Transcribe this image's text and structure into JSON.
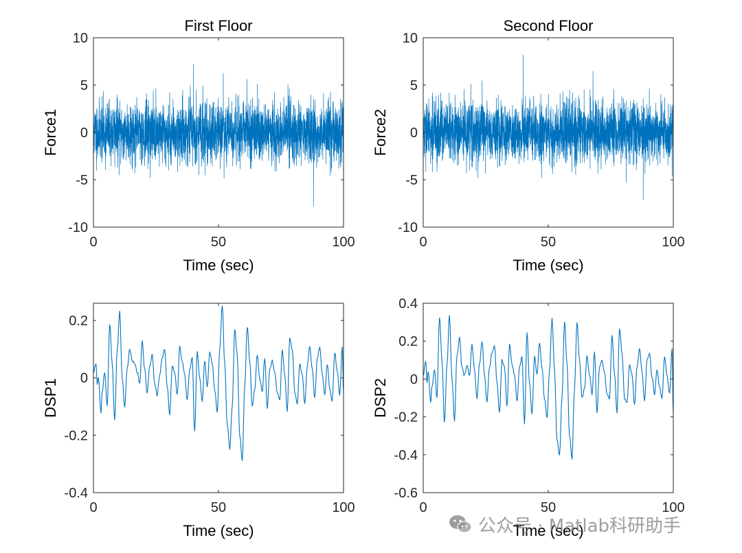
{
  "line_color": "#0072bd",
  "watermark": {
    "text": "公众号 · Matlab科研助手",
    "icon": "wechat-icon"
  },
  "chart_data": [
    {
      "type": "line",
      "title": "First Floor",
      "xlabel": "Time (sec)",
      "ylabel": "Force1",
      "xlim": [
        0,
        100
      ],
      "ylim": [
        -10,
        10
      ],
      "xticks": [
        "0",
        "50",
        "100"
      ],
      "yticks": [
        "-10",
        "-5",
        "0",
        "5",
        "10"
      ],
      "series": [
        {
          "name": "Force1",
          "kind": "noise",
          "sigma": 1.6,
          "max": 7.2,
          "min": -7.8,
          "seed": 11
        }
      ]
    },
    {
      "type": "line",
      "title": "Second Floor",
      "xlabel": "Time (sec)",
      "ylabel": "Force2",
      "xlim": [
        0,
        100
      ],
      "ylim": [
        -10,
        10
      ],
      "xticks": [
        "0",
        "50",
        "100"
      ],
      "yticks": [
        "-10",
        "-5",
        "0",
        "5",
        "10"
      ],
      "series": [
        {
          "name": "Force2",
          "kind": "noise",
          "sigma": 1.6,
          "max": 8.2,
          "min": -7.1,
          "seed": 29
        }
      ]
    },
    {
      "type": "line",
      "title": "",
      "xlabel": "Time (sec)",
      "ylabel": "DSP1",
      "xlim": [
        0,
        100
      ],
      "ylim": [
        -0.4,
        0.26
      ],
      "xticks": [
        "0",
        "50",
        "100"
      ],
      "yticks": [
        "-0.4",
        "-0.2",
        "0",
        "0.2"
      ],
      "series": [
        {
          "name": "DSP1",
          "kind": "signal",
          "x": [
            0,
            1,
            1.5,
            2,
            3,
            3.5,
            4.5,
            5.5,
            6.5,
            7.5,
            8.5,
            9.5,
            10.5,
            11.5,
            12.5,
            13.5,
            14.5,
            15.5,
            16.5,
            17.5,
            18.5,
            19.5,
            20.5,
            21.5,
            22.5,
            23.5,
            24.5,
            25.5,
            26.5,
            27.5,
            28.5,
            29.5,
            30.5,
            31.5,
            32.5,
            33.5,
            34.5,
            35.5,
            36.5,
            37.5,
            38.5,
            39.5,
            40.5,
            41.5,
            42.5,
            43.5,
            44.5,
            45.5,
            46.5,
            47.5,
            48.5,
            49.5,
            50.5,
            51.5,
            52.5,
            53.5,
            54.5,
            55.5,
            56.5,
            57.5,
            58.5,
            59.5,
            60.5,
            61.5,
            62.5,
            63.5,
            64.5,
            65.5,
            66.5,
            67.5,
            68.5,
            69.5,
            70.5,
            71.5,
            72.5,
            73.5,
            74.5,
            75.5,
            76.5,
            77.5,
            78.5,
            79.5,
            80.5,
            81.5,
            82.5,
            83.5,
            84.5,
            85.5,
            86.5,
            87.5,
            88.5,
            89.5,
            90.5,
            91.5,
            92.5,
            93.5,
            94.5,
            95.5,
            96.5,
            97.5,
            98.5,
            99.5,
            100
          ],
          "y": [
            0.02,
            0.05,
            -0.02,
            0.0,
            -0.12,
            -0.05,
            0.02,
            -0.1,
            0.19,
            0.05,
            -0.15,
            0.1,
            0.23,
            0.0,
            -0.1,
            0.03,
            0.1,
            0.06,
            0.05,
            0.02,
            -0.02,
            0.13,
            0.03,
            -0.05,
            0.04,
            0.08,
            -0.02,
            -0.06,
            0.01,
            0.07,
            0.1,
            -0.03,
            -0.13,
            0.04,
            0.02,
            -0.06,
            0.11,
            0.06,
            0.01,
            -0.08,
            0.03,
            0.07,
            -0.19,
            0.09,
            0.0,
            -0.08,
            0.06,
            -0.03,
            0.09,
            0.05,
            -0.04,
            -0.12,
            0.1,
            0.25,
            0.05,
            -0.16,
            -0.25,
            -0.1,
            0.17,
            0.08,
            -0.2,
            -0.29,
            -0.03,
            0.18,
            0.06,
            -0.1,
            -0.04,
            0.08,
            0.0,
            -0.05,
            0.07,
            -0.11,
            0.03,
            0.06,
            0.02,
            -0.05,
            -0.08,
            0.1,
            0.01,
            -0.12,
            0.14,
            0.1,
            -0.05,
            -0.09,
            0.05,
            0.01,
            -0.09,
            0.04,
            0.11,
            0.03,
            -0.07,
            0.07,
            0.11,
            0.01,
            -0.06,
            0.05,
            -0.04,
            -0.08,
            0.09,
            0.02,
            -0.06,
            0.11,
            -0.05
          ]
        }
      ]
    },
    {
      "type": "line",
      "title": "",
      "xlabel": "Time (sec)",
      "ylabel": "DSP2",
      "xlim": [
        0,
        100
      ],
      "ylim": [
        -0.6,
        0.4
      ],
      "xticks": [
        "0",
        "50",
        "100"
      ],
      "yticks": [
        "-0.6",
        "-0.4",
        "-0.2",
        "0",
        "0.2",
        "0.4"
      ],
      "series": [
        {
          "name": "DSP2",
          "kind": "signal",
          "x": [
            0,
            1,
            1.5,
            2,
            3,
            3.5,
            4.5,
            5.5,
            6.5,
            7.5,
            8.5,
            9.5,
            10.5,
            11.5,
            12.5,
            13.5,
            14.5,
            15.5,
            16.5,
            17.5,
            18.5,
            19.5,
            20.5,
            21.5,
            22.5,
            23.5,
            24.5,
            25.5,
            26.5,
            27.5,
            28.5,
            29.5,
            30.5,
            31.5,
            32.5,
            33.5,
            34.5,
            35.5,
            36.5,
            37.5,
            38.5,
            39.5,
            40.5,
            41.5,
            42.5,
            43.5,
            44.5,
            45.5,
            46.5,
            47.5,
            48.5,
            49.5,
            50.5,
            51.5,
            52.5,
            53.5,
            54.5,
            55.5,
            56.5,
            57.5,
            58.5,
            59.5,
            60.5,
            61.5,
            62.5,
            63.5,
            64.5,
            65.5,
            66.5,
            67.5,
            68.5,
            69.5,
            70.5,
            71.5,
            72.5,
            73.5,
            74.5,
            75.5,
            76.5,
            77.5,
            78.5,
            79.5,
            80.5,
            81.5,
            82.5,
            83.5,
            84.5,
            85.5,
            86.5,
            87.5,
            88.5,
            89.5,
            90.5,
            91.5,
            92.5,
            93.5,
            94.5,
            95.5,
            96.5,
            97.5,
            98.5,
            99.5,
            100
          ],
          "y": [
            0.02,
            0.1,
            -0.02,
            0.04,
            -0.12,
            -0.04,
            0.05,
            -0.1,
            0.33,
            0.1,
            -0.23,
            0.08,
            0.34,
            0.0,
            -0.22,
            0.12,
            0.22,
            0.06,
            0.02,
            0.07,
            0.02,
            0.18,
            0.05,
            -0.1,
            0.08,
            0.2,
            0.02,
            -0.12,
            0.06,
            0.14,
            0.18,
            -0.02,
            -0.18,
            0.1,
            0.06,
            -0.14,
            0.18,
            0.08,
            0.02,
            -0.12,
            0.06,
            0.12,
            -0.24,
            0.24,
            -0.02,
            -0.18,
            0.12,
            0.02,
            0.19,
            0.06,
            -0.1,
            -0.2,
            0.04,
            0.32,
            0.05,
            -0.32,
            -0.4,
            -0.1,
            0.3,
            0.08,
            -0.3,
            -0.42,
            -0.05,
            0.3,
            0.1,
            -0.1,
            -0.05,
            0.12,
            0.02,
            -0.08,
            0.14,
            -0.18,
            0.06,
            0.1,
            0.03,
            -0.08,
            -0.1,
            0.23,
            0.03,
            -0.18,
            0.27,
            0.14,
            -0.1,
            -0.12,
            0.08,
            0.02,
            -0.14,
            0.06,
            0.16,
            0.04,
            -0.12,
            0.1,
            0.14,
            0.01,
            -0.08,
            0.05,
            -0.04,
            -0.1,
            0.12,
            0.02,
            -0.08,
            0.16,
            -0.18
          ]
        }
      ]
    }
  ]
}
